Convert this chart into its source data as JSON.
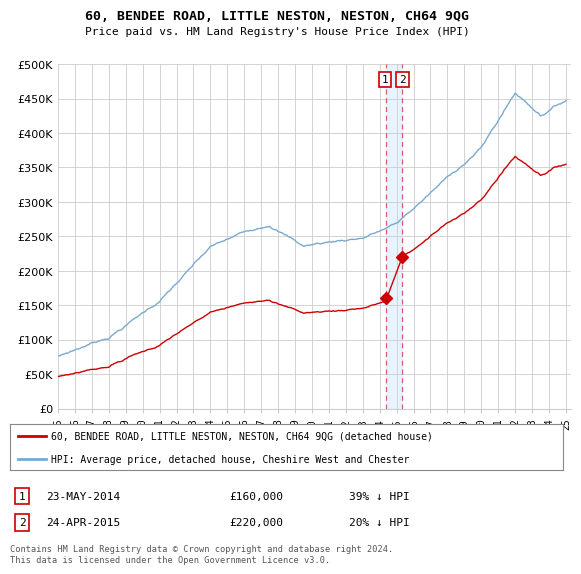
{
  "title": "60, BENDEE ROAD, LITTLE NESTON, NESTON, CH64 9QG",
  "subtitle": "Price paid vs. HM Land Registry's House Price Index (HPI)",
  "ylim": [
    0,
    500000
  ],
  "yticks": [
    0,
    50000,
    100000,
    150000,
    200000,
    250000,
    300000,
    350000,
    400000,
    450000,
    500000
  ],
  "hpi_color": "#7aaad0",
  "price_color": "#cc0000",
  "dot_color": "#cc0000",
  "t1_year": 2014.38,
  "t2_year": 2015.29,
  "t1_price": 160000,
  "t2_price": 220000,
  "legend_line1": "60, BENDEE ROAD, LITTLE NESTON, NESTON, CH64 9QG (detached house)",
  "legend_line2": "HPI: Average price, detached house, Cheshire West and Chester",
  "footer": "Contains HM Land Registry data © Crown copyright and database right 2024.\nThis data is licensed under the Open Government Licence v3.0.",
  "background_color": "#ffffff",
  "grid_color": "#cccccc"
}
